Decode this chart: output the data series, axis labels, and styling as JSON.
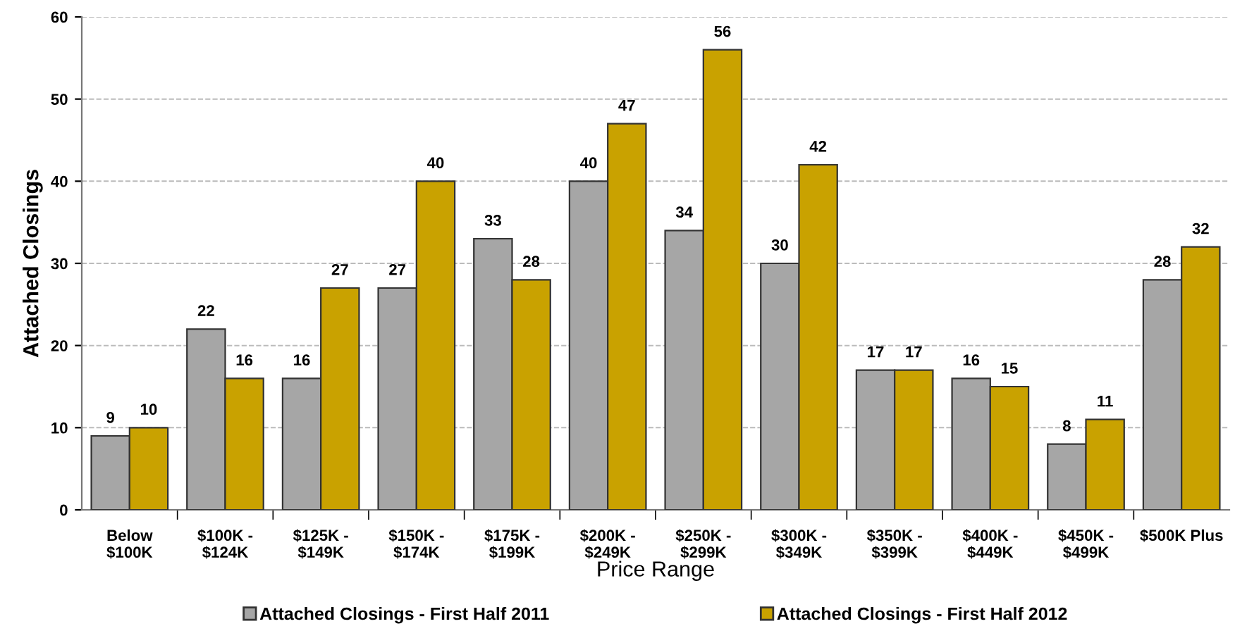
{
  "chart_data": {
    "type": "bar",
    "xlabel": "Price Range",
    "ylabel": "Attached Closings",
    "categories": [
      "Below\n$100K",
      "$100K -\n$124K",
      "$125K -\n$149K",
      "$150K -\n$174K",
      "$175K -\n$199K",
      "$200K -\n$249K",
      "$250K -\n$299K",
      "$300K -\n$349K",
      "$350K -\n$399K",
      "$400K -\n$449K",
      "$450K -\n$499K",
      "$500K Plus"
    ],
    "series": [
      {
        "name": "Attached Closings - First Half 2011",
        "color": "#a6a6a6",
        "values": [
          9,
          22,
          16,
          27,
          33,
          40,
          34,
          30,
          17,
          16,
          8,
          28
        ]
      },
      {
        "name": "Attached Closings - First Half 2012",
        "color": "#c9a200",
        "values": [
          10,
          16,
          27,
          40,
          28,
          47,
          56,
          42,
          17,
          15,
          11,
          32
        ]
      }
    ],
    "ylim": [
      0,
      60
    ],
    "yticks": [
      0,
      10,
      20,
      30,
      40,
      50,
      60
    ],
    "grid": "y",
    "legend": "bottom",
    "data_labels": true
  }
}
